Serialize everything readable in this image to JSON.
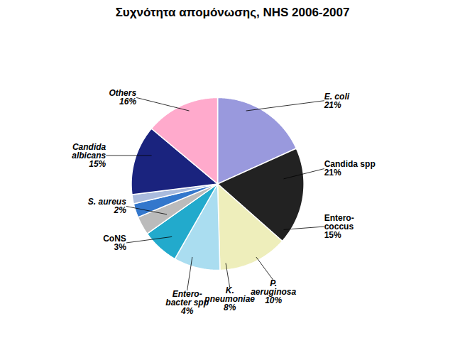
{
  "chart_data": {
    "type": "pie",
    "title": "Συχνότητα απομόνωσης, NHS 2006-2007",
    "categories": [
      "E. coli",
      "Candida spp",
      "Entero-\ncoccus",
      "P.\naeruginosa",
      "K.\npneumoniae",
      "Entero-\nbacter spp",
      "CoNS",
      "S. aureus",
      "Candida\nalbicans",
      "Others"
    ],
    "values": [
      21,
      21,
      15,
      10,
      8,
      4,
      3,
      2,
      15,
      16
    ],
    "value_labels": [
      "21%",
      "21%",
      "15%",
      "10%",
      "8%",
      "4%",
      "3%",
      "2%",
      "15%",
      "16%"
    ],
    "colors": [
      "#9999dd",
      "#222222",
      "#eeeebb",
      "#aaddf0",
      "#22aacc",
      "#bbbbbb",
      "#3377cc",
      "#aabbdd",
      "#1a237e",
      "#ffaacc"
    ],
    "data_labels": true
  }
}
